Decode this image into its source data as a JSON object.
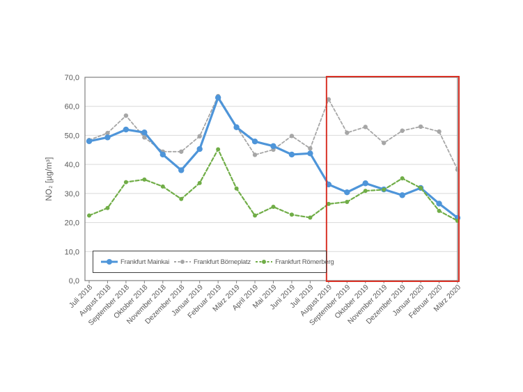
{
  "chart_data": {
    "type": "line",
    "title": "",
    "xlabel": "",
    "ylabel": "NO₂ [µg/m³]",
    "ylim": [
      0,
      70
    ],
    "y_tick_step": 10,
    "y_tick_labels": [
      "0,0",
      "10,0",
      "20,0",
      "30,0",
      "40,0",
      "50,0",
      "60,0",
      "70,0"
    ],
    "grid": "horizontal",
    "gridline_color": "#d9d9d9",
    "axis_color": "#808080",
    "tick_label_color": "#595959",
    "legend_border_color": "#3f3f3f",
    "legend_position": "bottom-left-inside",
    "categories": [
      "Juli 2018",
      "August 2018",
      "September 2018",
      "Oktober 2018",
      "November 2018",
      "Dezember 2018",
      "Januar 2019",
      "Februar 2019",
      "März 2019",
      "April 2019",
      "Mai 2019",
      "Juni 2019",
      "Juli 2019",
      "August 2019",
      "September 2019",
      "Oktober 2019",
      "November 2019",
      "Dezember 2019",
      "Januar 2020",
      "Februar 2020",
      "März 2020"
    ],
    "series": [
      {
        "name": "Frankfurt Mainkai",
        "color": "#4e95d9",
        "style": "solid",
        "marker": "circle",
        "values": [
          48.0,
          49.3,
          52.0,
          51.0,
          43.4,
          38.0,
          45.3,
          63.0,
          52.8,
          47.9,
          46.3,
          43.4,
          43.8,
          33.1,
          30.4,
          33.5,
          31.4,
          29.4,
          31.9,
          26.5,
          21.6
        ]
      },
      {
        "name": "Frankfurt Börneplatz",
        "color": "#a6a6a6",
        "style": "dashed",
        "marker": "circle",
        "values": [
          48.4,
          50.8,
          56.8,
          49.3,
          44.4,
          44.4,
          49.7,
          63.5,
          53.0,
          43.3,
          45.1,
          49.8,
          45.5,
          62.4,
          50.9,
          52.9,
          47.4,
          51.6,
          53.0,
          51.3,
          38.2
        ]
      },
      {
        "name": "Frankfurt Römerberg",
        "color": "#70ad47",
        "style": "dashed",
        "marker": "circle",
        "values": [
          22.4,
          25.0,
          33.9,
          34.8,
          32.4,
          28.1,
          33.6,
          45.2,
          31.7,
          22.4,
          25.4,
          22.7,
          21.7,
          26.4,
          27.1,
          30.9,
          31.3,
          35.2,
          31.9,
          24.0,
          20.6
        ]
      }
    ],
    "highlight_region": {
      "from_category": "August 2019",
      "to_category": "März 2020",
      "border_color": "#d93226"
    }
  }
}
